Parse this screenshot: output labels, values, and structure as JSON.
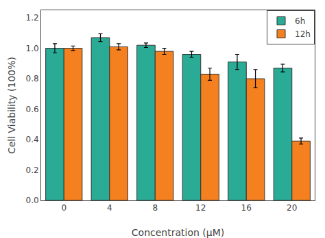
{
  "chart_data": {
    "type": "bar",
    "xlabel": "Concentration (μM)",
    "ylabel": "Cell Viability (100%)",
    "categories": [
      0,
      4,
      8,
      12,
      16,
      20
    ],
    "series": [
      {
        "name": "6h",
        "color": "#2aab96",
        "values": [
          1.0,
          1.07,
          1.02,
          0.96,
          0.91,
          0.87
        ],
        "errors": [
          0.03,
          0.025,
          0.015,
          0.02,
          0.05,
          0.025
        ]
      },
      {
        "name": "12h",
        "color": "#f48020",
        "values": [
          1.0,
          1.01,
          0.98,
          0.83,
          0.8,
          0.39
        ],
        "errors": [
          0.015,
          0.02,
          0.02,
          0.04,
          0.06,
          0.02
        ]
      }
    ],
    "ylim": [
      0.0,
      1.25
    ],
    "yticks": [
      {
        "value": 0.0,
        "label": "0.0"
      },
      0.2,
      0.4,
      0.6,
      0.8,
      {
        "value": 1.0,
        "label": "1.0"
      },
      1.2
    ],
    "grid": false,
    "legend": "upper right"
  }
}
